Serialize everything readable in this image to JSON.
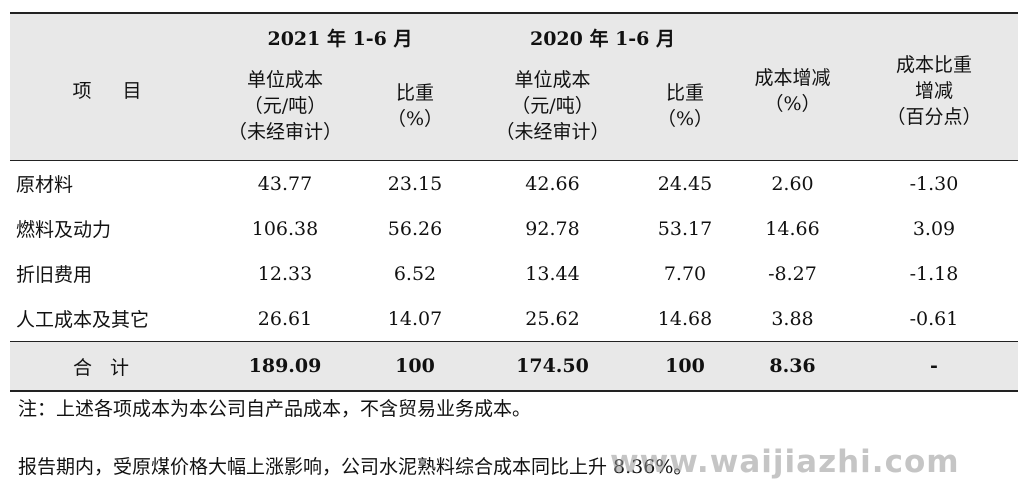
{
  "table": {
    "group_headers": [
      "2021 年 1-6 月",
      "2020 年 1-6 月"
    ],
    "item_header": "项　目",
    "sub_headers": {
      "unit_cost_2021": [
        "单位成本",
        "（元/吨）",
        "（未经审计）"
      ],
      "ratio_2021": [
        "比重",
        "（%）"
      ],
      "unit_cost_2020": [
        "单位成本",
        "（元/吨）",
        "（未经审计）"
      ],
      "ratio_2020": [
        "比重",
        "（%）"
      ],
      "cost_change": [
        "成本增减",
        "（%）"
      ],
      "ratio_change": [
        "成本比重",
        "增减",
        "（百分点）"
      ]
    },
    "rows": [
      [
        "原材料",
        "43.77",
        "23.15",
        "42.66",
        "24.45",
        "2.60",
        "-1.30"
      ],
      [
        "燃料及动力",
        "106.38",
        "56.26",
        "92.78",
        "53.17",
        "14.66",
        "3.09"
      ],
      [
        "折旧费用",
        "12.33",
        "6.52",
        "13.44",
        "7.70",
        "-8.27",
        "-1.18"
      ],
      [
        "人工成本及其它",
        "26.61",
        "14.07",
        "25.62",
        "14.68",
        "3.88",
        "-0.61"
      ]
    ],
    "total": [
      "合计",
      "189.09",
      "100",
      "174.50",
      "100",
      "8.36",
      "-"
    ]
  },
  "note": "注：上述各项成本为本公司自产品成本，不含贸易业务成本。",
  "paragraph": "报告期内，受原煤价格大幅上涨影响，公司水泥熟料综合成本同比上升 8.36%。",
  "watermark": "www.waijiazhi.com"
}
